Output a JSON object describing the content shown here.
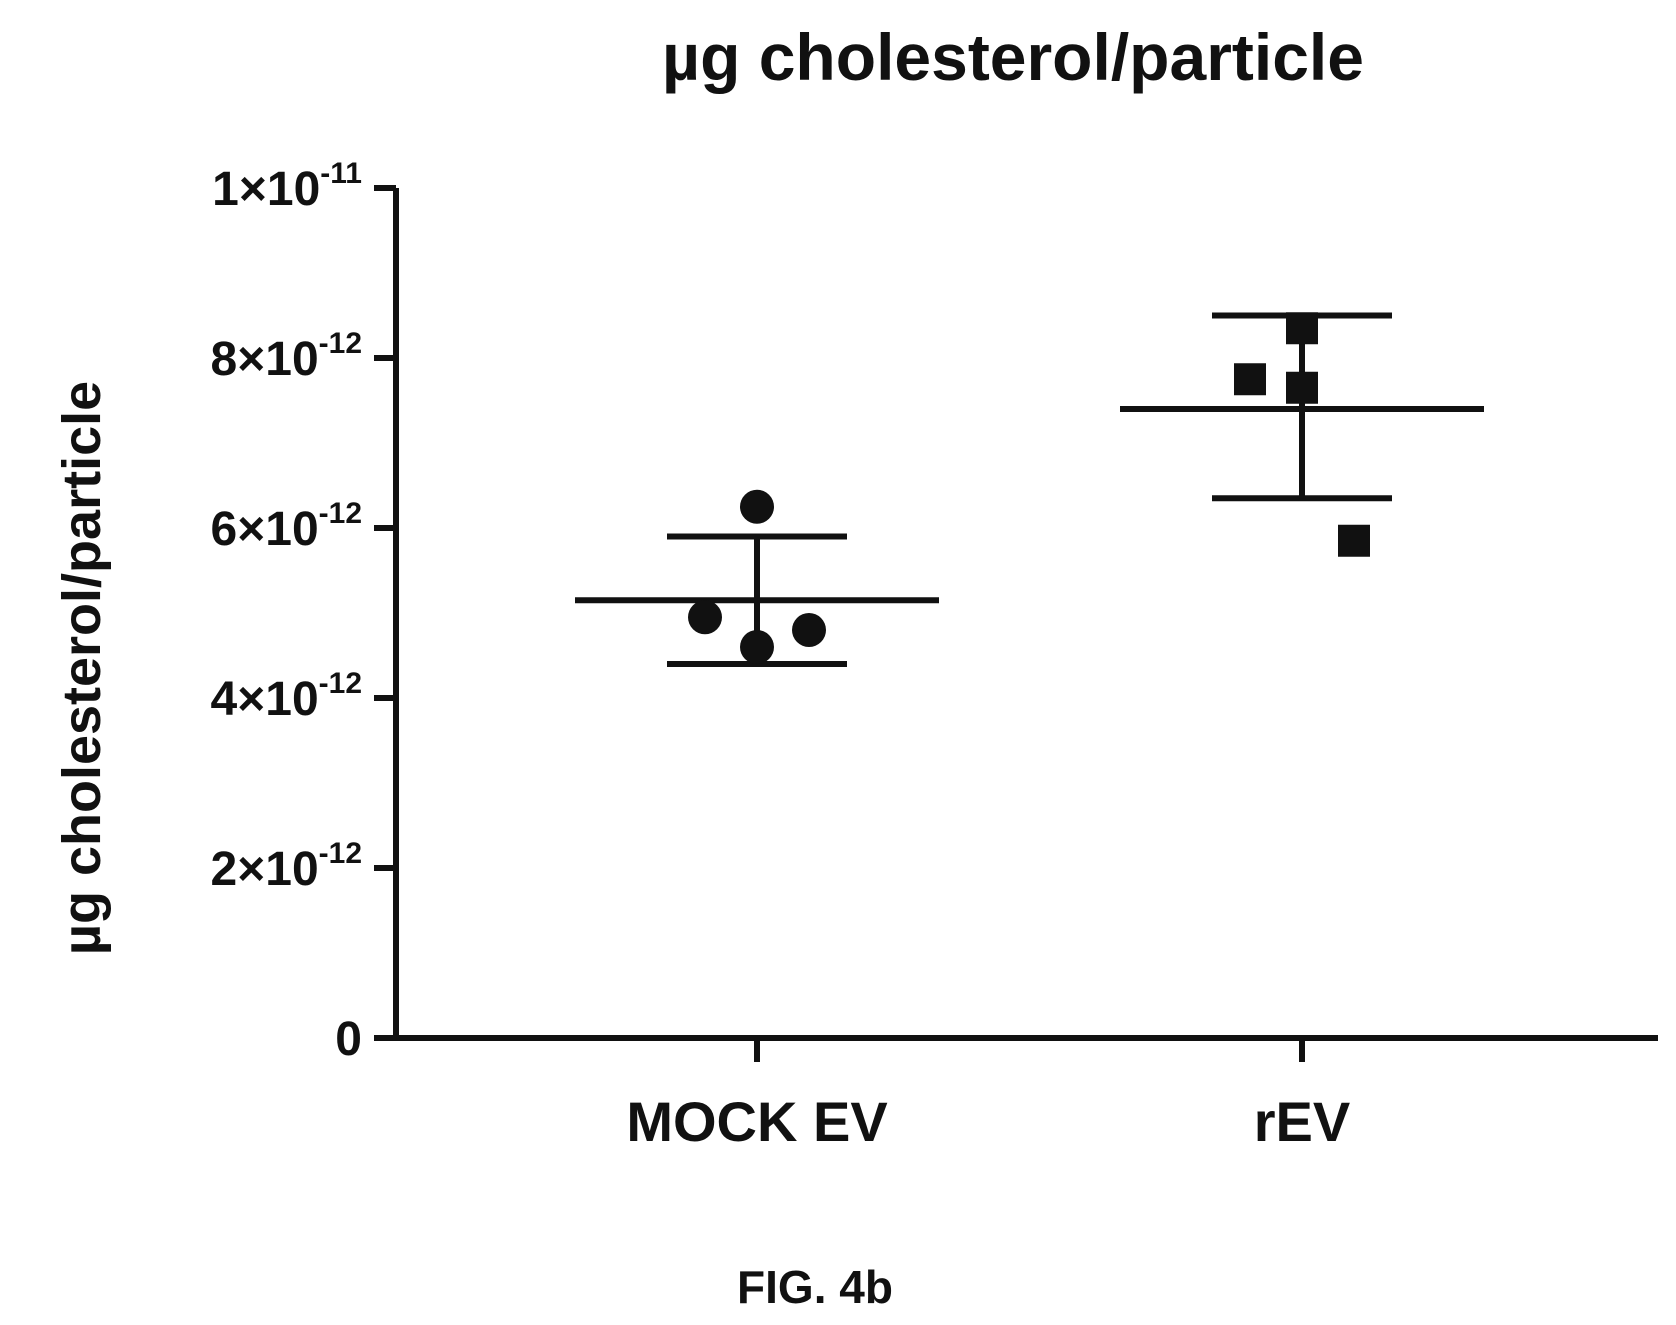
{
  "chart_data": {
    "type": "scatter",
    "title": "µg cholesterol/particle",
    "xlabel": "",
    "ylabel": "µg cholesterol/particle",
    "ylim": [
      0,
      1e-11
    ],
    "grid": false,
    "yticks": [
      {
        "value": 0,
        "mantissa": "0",
        "exponent": ""
      },
      {
        "value": 2e-12,
        "mantissa": "2×10",
        "exponent": "-12"
      },
      {
        "value": 4e-12,
        "mantissa": "4×10",
        "exponent": "-12"
      },
      {
        "value": 6e-12,
        "mantissa": "6×10",
        "exponent": "-12"
      },
      {
        "value": 8e-12,
        "mantissa": "8×10",
        "exponent": "-12"
      },
      {
        "value": 1e-11,
        "mantissa": "1×10",
        "exponent": "-11"
      }
    ],
    "categories": [
      "MOCK EV",
      "rEV"
    ],
    "series": [
      {
        "category": "MOCK EV",
        "marker": "circle",
        "points": [
          6.25e-12,
          4.95e-12,
          4.6e-12,
          4.8e-12
        ],
        "mean": 5.15e-12,
        "error_upper": 5.9e-12,
        "error_lower": 4.4e-12
      },
      {
        "category": "rEV",
        "marker": "square",
        "points": [
          8.35e-12,
          7.75e-12,
          7.65e-12,
          5.85e-12
        ],
        "mean": 7.4e-12,
        "error_upper": 8.5e-12,
        "error_lower": 6.35e-12
      }
    ]
  },
  "figure_label": "FIG. 4b"
}
